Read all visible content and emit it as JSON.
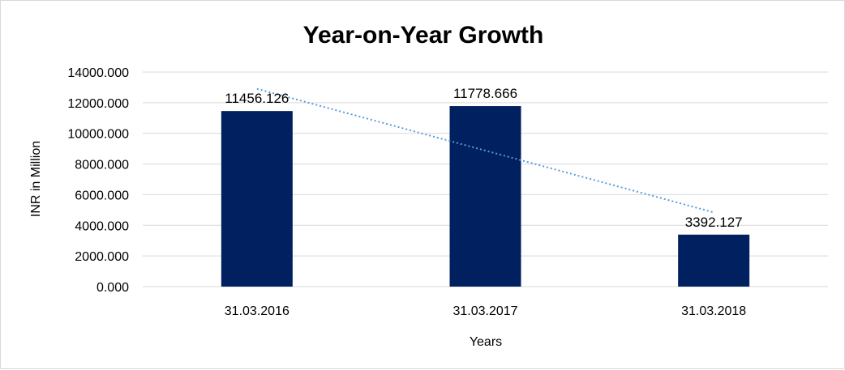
{
  "chart_data": {
    "type": "bar",
    "title": "Year-on-Year Growth",
    "xlabel": "Years",
    "ylabel": "INR in Million",
    "categories": [
      "31.03.2016",
      "31.03.2017",
      "31.03.2018"
    ],
    "values": [
      11456.126,
      11778.666,
      3392.127
    ],
    "data_labels": [
      "11456.126",
      "11778.666",
      "3392.127"
    ],
    "y_ticks": [
      0,
      2000,
      4000,
      6000,
      8000,
      10000,
      12000,
      14000
    ],
    "y_tick_labels": [
      "0.000",
      "2000.000",
      "4000.000",
      "6000.000",
      "8000.000",
      "10000.000",
      "12000.000",
      "14000.000"
    ],
    "ylim": [
      0,
      14000
    ],
    "grid": true,
    "legend": "none",
    "trendline": {
      "type": "linear",
      "style": "dotted",
      "color": "#5b9bd5"
    },
    "colors": {
      "bar": "#002060",
      "grid": "#d9d9d9",
      "trendline": "#5b9bd5"
    }
  }
}
